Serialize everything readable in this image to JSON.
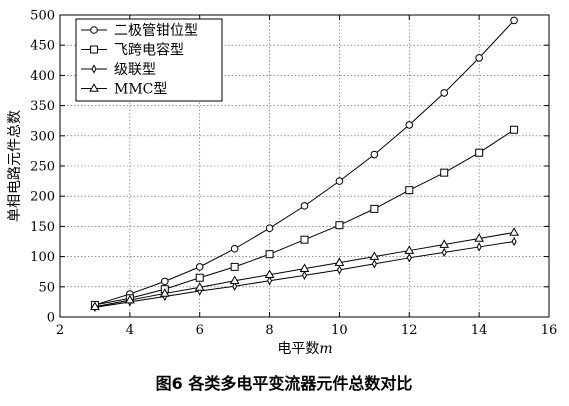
{
  "chart_data": {
    "type": "line",
    "xlabel": "电平数",
    "xlabel_var": "m",
    "ylabel": "单相电路元件总数",
    "xlim": [
      2,
      16
    ],
    "ylim": [
      0,
      500
    ],
    "x_ticks": [
      2,
      4,
      6,
      8,
      10,
      12,
      14,
      16
    ],
    "y_ticks": [
      0,
      50,
      100,
      150,
      200,
      250,
      300,
      350,
      400,
      450,
      500
    ],
    "grid": true,
    "legend_position": "top-left",
    "x": [
      3,
      4,
      5,
      6,
      7,
      8,
      9,
      10,
      11,
      12,
      13,
      14,
      15
    ],
    "series": [
      {
        "name": "二极管钳位型",
        "marker": "circle",
        "values": [
          20,
          38,
          59,
          83,
          113,
          147,
          184,
          225,
          269,
          318,
          371,
          429,
          491
        ]
      },
      {
        "name": "飞跨电容型",
        "marker": "square",
        "values": [
          20,
          31,
          46,
          65,
          83,
          104,
          128,
          152,
          179,
          210,
          239,
          272,
          310
        ]
      },
      {
        "name": "级联型",
        "marker": "diamond",
        "values": [
          16,
          25,
          34,
          43,
          51,
          60,
          69,
          78,
          88,
          98,
          107,
          116,
          125
        ]
      },
      {
        "name": "MMC型",
        "marker": "triangle",
        "values": [
          17,
          28,
          39,
          49,
          60,
          70,
          80,
          90,
          100,
          110,
          120,
          130,
          140
        ]
      }
    ]
  },
  "caption": "图6  各类多电平变流器元件总数对比"
}
